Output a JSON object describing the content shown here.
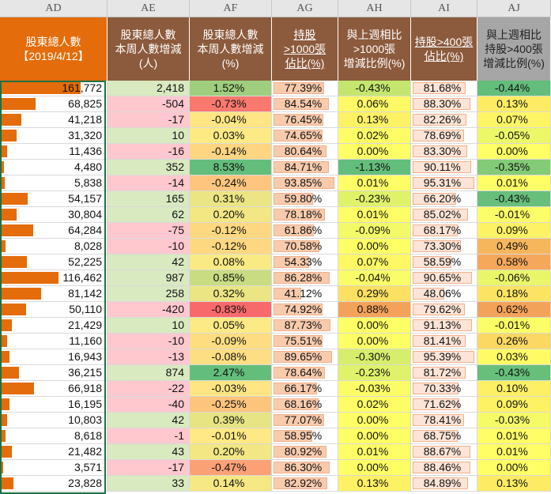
{
  "columns": [
    "AD",
    "AE",
    "AF",
    "AG",
    "AH",
    "AI",
    "AJ"
  ],
  "headers": [
    {
      "label": "股東總人數\n【2019/4/12】",
      "bg": "#e46c0a"
    },
    {
      "label": "股東總人數\n本周人數增減\n(人)",
      "bg": "#8c5a3c"
    },
    {
      "label": "股東總人數\n本周人數增減\n(%)",
      "bg": "#8c5a3c"
    },
    {
      "label": "持股\n>1000張\n佔比(%)",
      "bg": "#8c5a3c"
    },
    {
      "label": "與上週相比\n>1000張\n增減比例(%)",
      "bg": "#8c5a3c"
    },
    {
      "label": "持股>400張\n佔比(%)",
      "bg": "#8c5a3c"
    },
    {
      "label": "與上週相比\n持股>400張\n增減比例(%)",
      "bg": "#a6a6a6"
    }
  ],
  "rows": [
    [
      "161,772",
      "2,418",
      "1.52%",
      "77.39%",
      "-0.43%",
      "81.68%",
      "-0.44%"
    ],
    [
      "68,825",
      "-504",
      "-0.73%",
      "84.54%",
      "0.06%",
      "88.30%",
      "0.13%"
    ],
    [
      "41,218",
      "-17",
      "-0.04%",
      "76.45%",
      "0.13%",
      "82.26%",
      "0.07%"
    ],
    [
      "31,320",
      "10",
      "0.03%",
      "74.65%",
      "0.02%",
      "78.69%",
      "-0.05%"
    ],
    [
      "11,436",
      "-16",
      "-0.14%",
      "80.64%",
      "0.00%",
      "83.30%",
      "0.00%"
    ],
    [
      "4,480",
      "352",
      "8.53%",
      "84.71%",
      "-1.13%",
      "90.11%",
      "-0.35%"
    ],
    [
      "5,838",
      "-14",
      "-0.24%",
      "93.85%",
      "0.01%",
      "95.31%",
      "0.01%"
    ],
    [
      "54,157",
      "165",
      "0.31%",
      "59.80%",
      "-0.23%",
      "66.20%",
      "-0.43%"
    ],
    [
      "30,804",
      "62",
      "0.20%",
      "78.18%",
      "0.01%",
      "85.02%",
      "-0.01%"
    ],
    [
      "64,284",
      "-75",
      "-0.12%",
      "61.86%",
      "-0.09%",
      "68.17%",
      "0.09%"
    ],
    [
      "8,028",
      "-10",
      "-0.12%",
      "70.58%",
      "0.00%",
      "73.30%",
      "0.49%"
    ],
    [
      "52,225",
      "42",
      "0.08%",
      "54.33%",
      "0.07%",
      "58.59%",
      "0.58%"
    ],
    [
      "116,462",
      "987",
      "0.85%",
      "86.28%",
      "-0.04%",
      "90.65%",
      "-0.06%"
    ],
    [
      "81,142",
      "258",
      "0.32%",
      "41.12%",
      "0.29%",
      "48.06%",
      "0.18%"
    ],
    [
      "50,110",
      "-420",
      "-0.83%",
      "74.92%",
      "0.88%",
      "79.62%",
      "0.62%"
    ],
    [
      "21,429",
      "10",
      "0.05%",
      "87.73%",
      "0.00%",
      "91.13%",
      "-0.01%"
    ],
    [
      "11,160",
      "-10",
      "-0.09%",
      "75.51%",
      "0.00%",
      "81.41%",
      "0.26%"
    ],
    [
      "16,943",
      "-13",
      "-0.08%",
      "89.65%",
      "-0.30%",
      "95.39%",
      "0.03%"
    ],
    [
      "36,215",
      "874",
      "2.47%",
      "78.64%",
      "-0.23%",
      "81.72%",
      "-0.43%"
    ],
    [
      "66,918",
      "-22",
      "-0.03%",
      "66.17%",
      "-0.03%",
      "70.33%",
      "0.10%"
    ],
    [
      "16,195",
      "-40",
      "-0.25%",
      "68.16%",
      "0.02%",
      "71.62%",
      "0.09%"
    ],
    [
      "10,803",
      "42",
      "0.39%",
      "77.07%",
      "0.00%",
      "78.41%",
      "-0.03%"
    ],
    [
      "8,618",
      "-1",
      "-0.01%",
      "58.95%",
      "0.00%",
      "68.75%",
      "0.01%"
    ],
    [
      "21,482",
      "43",
      "0.20%",
      "80.92%",
      "0.01%",
      "88.67%",
      "0.01%"
    ],
    [
      "3,571",
      "-17",
      "-0.47%",
      "86.30%",
      "0.00%",
      "88.46%",
      "0.00%"
    ],
    [
      "23,828",
      "33",
      "0.14%",
      "82.92%",
      "0.13%",
      "84.89%",
      "0.13%"
    ]
  ],
  "colors": {
    "bar_orange": "#e46c0a",
    "ag_bar": "#f8cbad",
    "ai_bar": "#fce4d6",
    "pos_bg": "#d9e9c0",
    "neg_bg": "#ffc7ce",
    "scale_green": "#63be7b",
    "scale_yellow": "#ffeb84",
    "scale_red": "#f8696b",
    "ah_yellow": "#ffff66",
    "selection": "#1e7145"
  }
}
